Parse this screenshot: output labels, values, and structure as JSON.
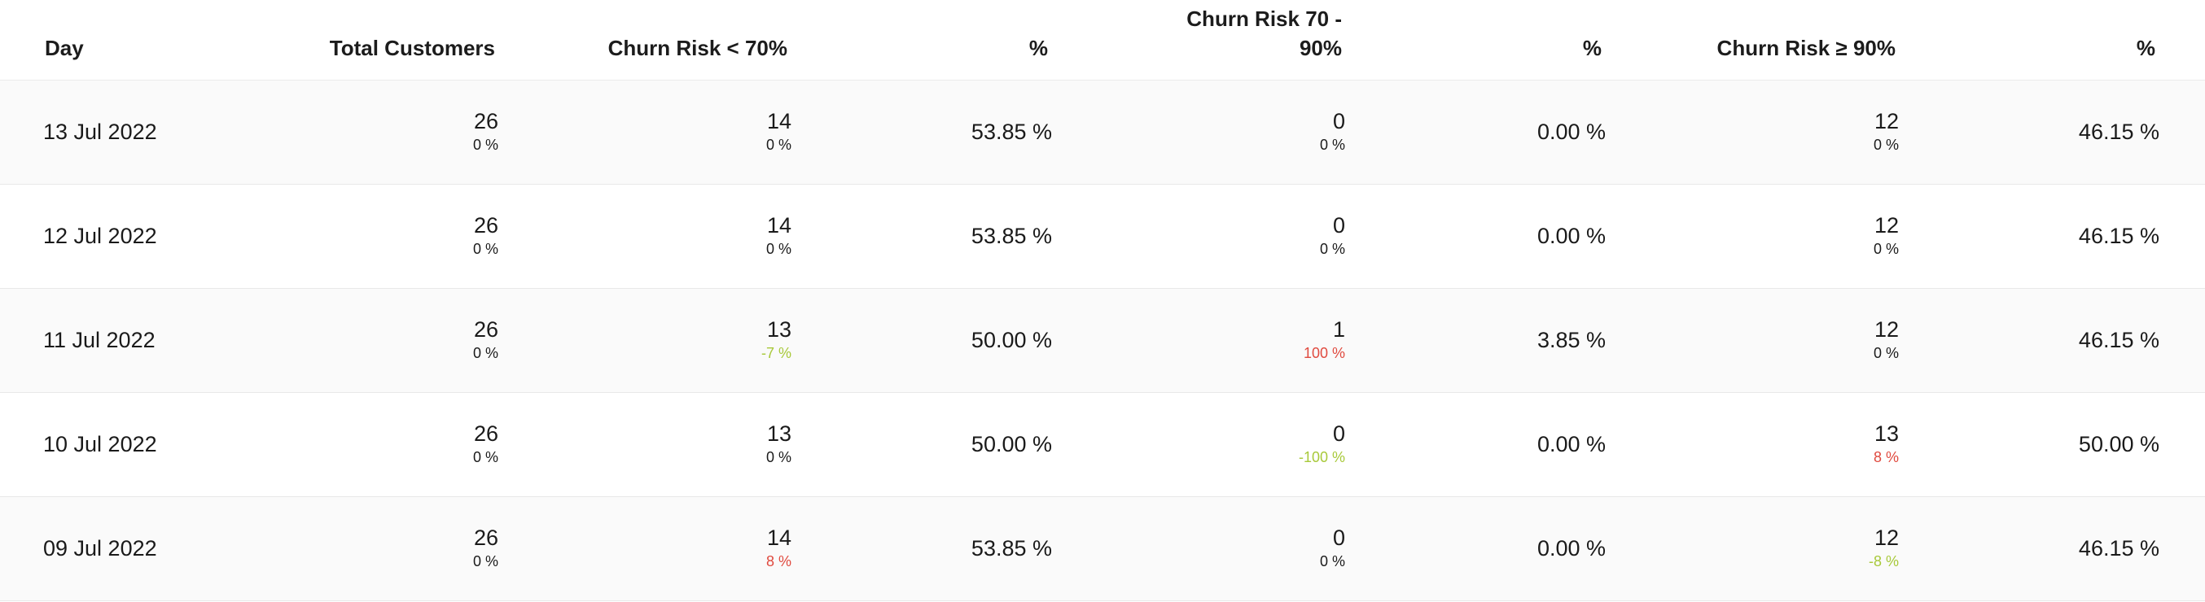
{
  "header": {
    "day": "Day",
    "total_customers": "Total Customers",
    "churn_low": "Churn Risk < 70%",
    "pct": "%",
    "churn_mid_line1": "Churn Risk 70 -",
    "churn_mid_line2": "90%",
    "churn_high": "Churn Risk ≥ 90%"
  },
  "rows": [
    {
      "day": "13 Jul 2022",
      "total": {
        "value": "26",
        "delta": "0 %"
      },
      "low": {
        "value": "14",
        "delta": "0 %"
      },
      "low_pct": "53.85 %",
      "mid": {
        "value": "0",
        "delta": "0 %"
      },
      "mid_pct": "0.00 %",
      "high": {
        "value": "12",
        "delta": "0 %"
      },
      "high_pct": "46.15 %"
    },
    {
      "day": "12 Jul 2022",
      "total": {
        "value": "26",
        "delta": "0 %"
      },
      "low": {
        "value": "14",
        "delta": "0 %"
      },
      "low_pct": "53.85 %",
      "mid": {
        "value": "0",
        "delta": "0 %"
      },
      "mid_pct": "0.00 %",
      "high": {
        "value": "12",
        "delta": "0 %"
      },
      "high_pct": "46.15 %"
    },
    {
      "day": "11 Jul 2022",
      "total": {
        "value": "26",
        "delta": "0 %"
      },
      "low": {
        "value": "13",
        "delta": "-7 %"
      },
      "low_pct": "50.00 %",
      "mid": {
        "value": "1",
        "delta": "100 %"
      },
      "mid_pct": "3.85 %",
      "high": {
        "value": "12",
        "delta": "0 %"
      },
      "high_pct": "46.15 %"
    },
    {
      "day": "10 Jul 2022",
      "total": {
        "value": "26",
        "delta": "0 %"
      },
      "low": {
        "value": "13",
        "delta": "0 %"
      },
      "low_pct": "50.00 %",
      "mid": {
        "value": "0",
        "delta": "-100 %"
      },
      "mid_pct": "0.00 %",
      "high": {
        "value": "13",
        "delta": "8 %"
      },
      "high_pct": "50.00 %"
    },
    {
      "day": "09 Jul 2022",
      "total": {
        "value": "26",
        "delta": "0 %"
      },
      "low": {
        "value": "14",
        "delta": "8 %"
      },
      "low_pct": "53.85 %",
      "mid": {
        "value": "0",
        "delta": "0 %"
      },
      "mid_pct": "0.00 %",
      "high": {
        "value": "12",
        "delta": "-8 %"
      },
      "high_pct": "46.15 %"
    }
  ],
  "colors": {
    "delta_red": "#e04a3f",
    "delta_green": "#a8c93a",
    "row_shade": "#fafafa"
  }
}
